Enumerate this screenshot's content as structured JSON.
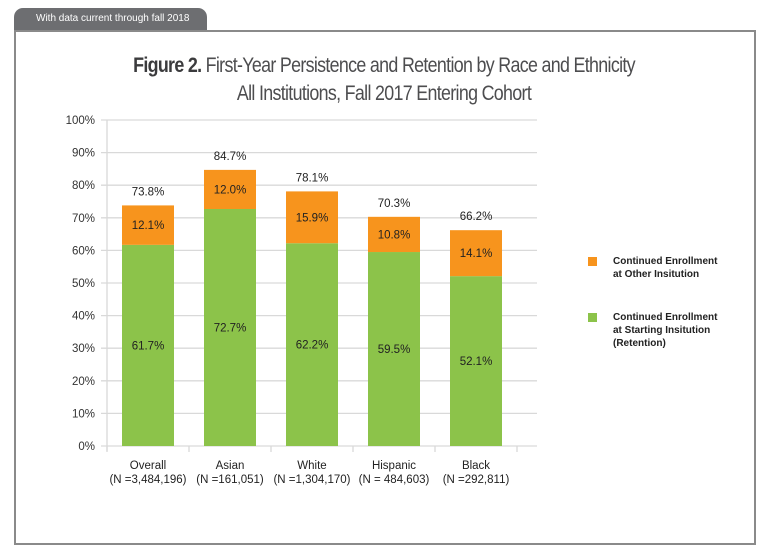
{
  "header_tab": "With data current through fall 2018",
  "chart_data": {
    "type": "bar",
    "stacked": true,
    "title_prefix": "Figure 2.",
    "title": "First-Year Persistence and Retention by Race and Ethnicity",
    "subtitle": "All Institutions, Fall 2017 Entering Cohort",
    "categories": [
      "Overall",
      "Asian",
      "White",
      "Hispanic",
      "Black"
    ],
    "category_sublabels": [
      "(N =3,484,196)",
      "(N =161,051)",
      "(N =1,304,170)",
      "(N = 484,603)",
      "(N =292,811)"
    ],
    "series": [
      {
        "name": "Continued Enrollment at Starting Insitution (Retention)",
        "legend_lines": [
          "Continued Enrollment",
          "at Starting Insitution",
          "(Retention)"
        ],
        "color": "#8cc34a",
        "values": [
          61.7,
          72.7,
          62.2,
          59.5,
          52.1
        ],
        "labels": [
          "61.7%",
          "72.7%",
          "62.2%",
          "59.5%",
          "52.1%"
        ]
      },
      {
        "name": "Continued Enrollment at Other Insitution",
        "legend_lines": [
          "Continued Enrollment",
          "at Other Insitution"
        ],
        "color": "#f7941d",
        "values": [
          12.1,
          12.0,
          15.9,
          10.8,
          14.1
        ],
        "labels": [
          "12.1%",
          "12.0%",
          "15.9%",
          "10.8%",
          "14.1%"
        ]
      }
    ],
    "totals": [
      "73.8%",
      "84.7%",
      "78.1%",
      "70.3%",
      "66.2%"
    ],
    "total_values": [
      73.8,
      84.7,
      78.1,
      70.3,
      66.2
    ],
    "yticks": [
      "0%",
      "10%",
      "20%",
      "30%",
      "40%",
      "50%",
      "60%",
      "70%",
      "80%",
      "90%",
      "100%"
    ],
    "ylim": [
      0,
      100
    ],
    "grid": true,
    "legend_position": "right"
  }
}
